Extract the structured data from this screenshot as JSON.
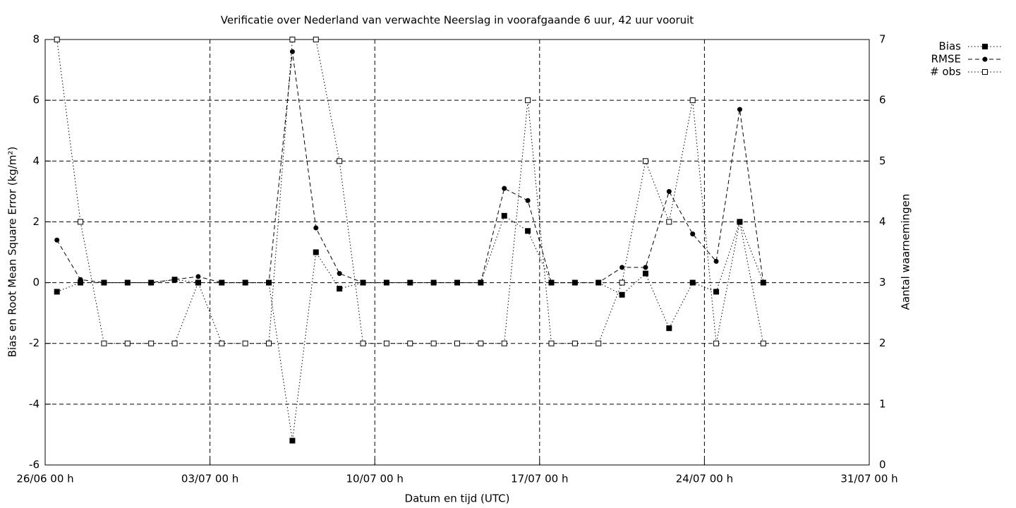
{
  "chart_data": {
    "type": "line",
    "title": "Verificatie over Nederland van verwachte Neerslag in voorafgaande 6 uur, 42 uur vooruit",
    "x_label": "Datum en tijd (UTC)",
    "y_label": "Bias en Root Mean Square Error (kg/m²)",
    "y2_label": "Aantal waarnemingen",
    "x": [
      "26/06 12 h",
      "27/06 12 h",
      "28/06 12 h",
      "29/06 12 h",
      "30/06 12 h",
      "01/07 12 h",
      "02/07 12 h",
      "03/07 12 h",
      "04/07 12 h",
      "05/07 12 h",
      "06/07 12 h",
      "07/07 12 h",
      "08/07 12 h",
      "09/07 12 h",
      "10/07 12 h",
      "11/07 12 h",
      "12/07 12 h",
      "13/07 12 h",
      "14/07 12 h",
      "15/07 12 h",
      "16/07 12 h",
      "17/07 12 h",
      "18/07 12 h",
      "19/07 12 h",
      "20/07 12 h",
      "21/07 12 h",
      "22/07 12 h",
      "23/07 12 h",
      "24/07 12 h",
      "25/07 12 h",
      "26/07 12 h"
    ],
    "series": [
      {
        "name": "Bias",
        "color": "#000000",
        "dash": "dotted",
        "marker": "filled-square",
        "values": [
          -0.3,
          0,
          0,
          0,
          0,
          0.1,
          0,
          0,
          0,
          0,
          -5.2,
          1.0,
          -0.2,
          0,
          0,
          0,
          0,
          0,
          0,
          2.2,
          1.7,
          0,
          0,
          0,
          -0.4,
          0.3,
          -1.5,
          0,
          -0.3,
          2.0,
          0
        ]
      },
      {
        "name": "RMSE",
        "color": "#000000",
        "dash": "dashed",
        "marker": "circle",
        "values": [
          1.4,
          0.1,
          0,
          0,
          0,
          0.1,
          0.2,
          0,
          0,
          0,
          7.6,
          1.8,
          0.3,
          0,
          0,
          0,
          0,
          0,
          0,
          3.1,
          2.7,
          0,
          0,
          0,
          0.5,
          0.5,
          3.0,
          1.6,
          0.7,
          5.7,
          0
        ]
      },
      {
        "name": "# obs",
        "color": "#000000",
        "dash": "dotted",
        "marker": "open-square",
        "axis": "y2",
        "values": [
          7,
          4,
          2,
          2,
          2,
          2,
          3,
          2,
          2,
          2,
          7,
          7,
          5,
          2,
          2,
          2,
          2,
          2,
          2,
          2,
          6,
          2,
          2,
          2,
          3,
          5,
          4,
          6,
          2,
          4,
          2
        ]
      }
    ],
    "xlim": [
      "26/06 00 h",
      "31/07 00 h"
    ],
    "xticks": [
      "26/06 00 h",
      "03/07 00 h",
      "10/07 00 h",
      "17/07 00 h",
      "24/07 00 h",
      "31/07 00 h"
    ],
    "ylim": [
      -6,
      8
    ],
    "yticks": [
      -6,
      -4,
      -2,
      0,
      2,
      4,
      6,
      8
    ],
    "y2lim": [
      0,
      7
    ],
    "y2ticks": [
      0,
      1,
      2,
      3,
      4,
      5,
      6,
      7
    ],
    "grid": true,
    "legend": "outside-top-right"
  }
}
